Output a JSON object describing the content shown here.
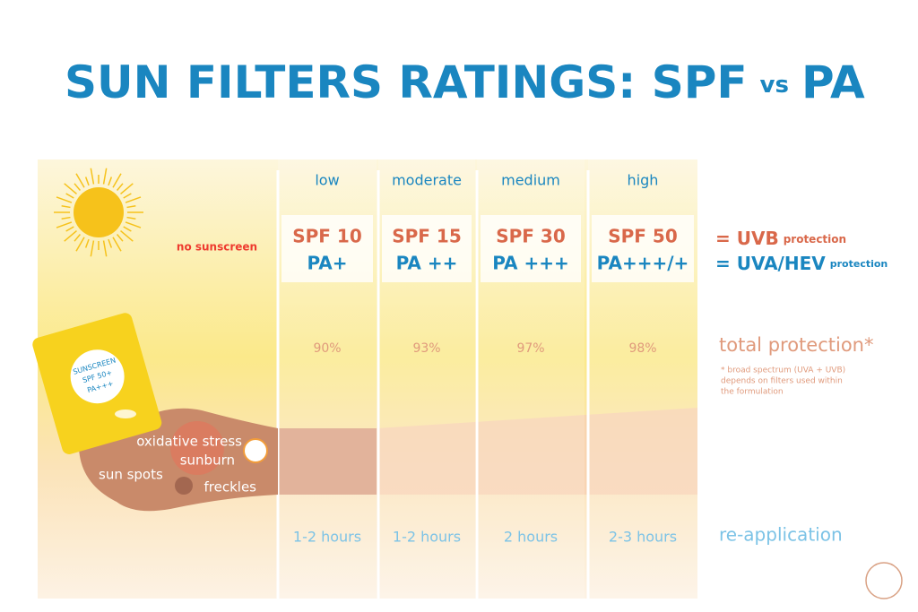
{
  "header": {
    "title": "SUN FILTERS RATINGS: SPF",
    "vs": "vs",
    "title_end": "PA"
  },
  "no_sunscreen": "no sunscreen",
  "bottle": [
    "SUNSCREEN",
    "SPF 50+",
    "PA+++"
  ],
  "skin_labels": [
    "oxidative stress",
    "sunburn",
    "sun spots",
    "freckles"
  ],
  "columns": [
    {
      "level": "low",
      "spf": "SPF 10",
      "pa": "PA+",
      "protection": "90%",
      "reapplication": "1-2 hours"
    },
    {
      "level": "moderate",
      "spf": "SPF 15",
      "pa": "PA ++",
      "protection": "93%",
      "reapplication": "1-2 hours"
    },
    {
      "level": "medium",
      "spf": "SPF 30",
      "pa": "PA +++",
      "protection": "97%",
      "reapplication": "2 hours"
    },
    {
      "level": "high",
      "spf": "SPF 50",
      "pa": "PA+++/+",
      "protection": "98%",
      "reapplication": "2-3 hours"
    }
  ],
  "legend": {
    "uvb": "= UVB",
    "uvb_small": "protection",
    "uva": "= UVA/HEV",
    "uva_small": "protection",
    "total": "total protection*",
    "note": [
      "* broad spectrum (UVA + UVB)",
      "depends on filters used within",
      "the formulation"
    ],
    "reapplication": "re-application"
  }
}
